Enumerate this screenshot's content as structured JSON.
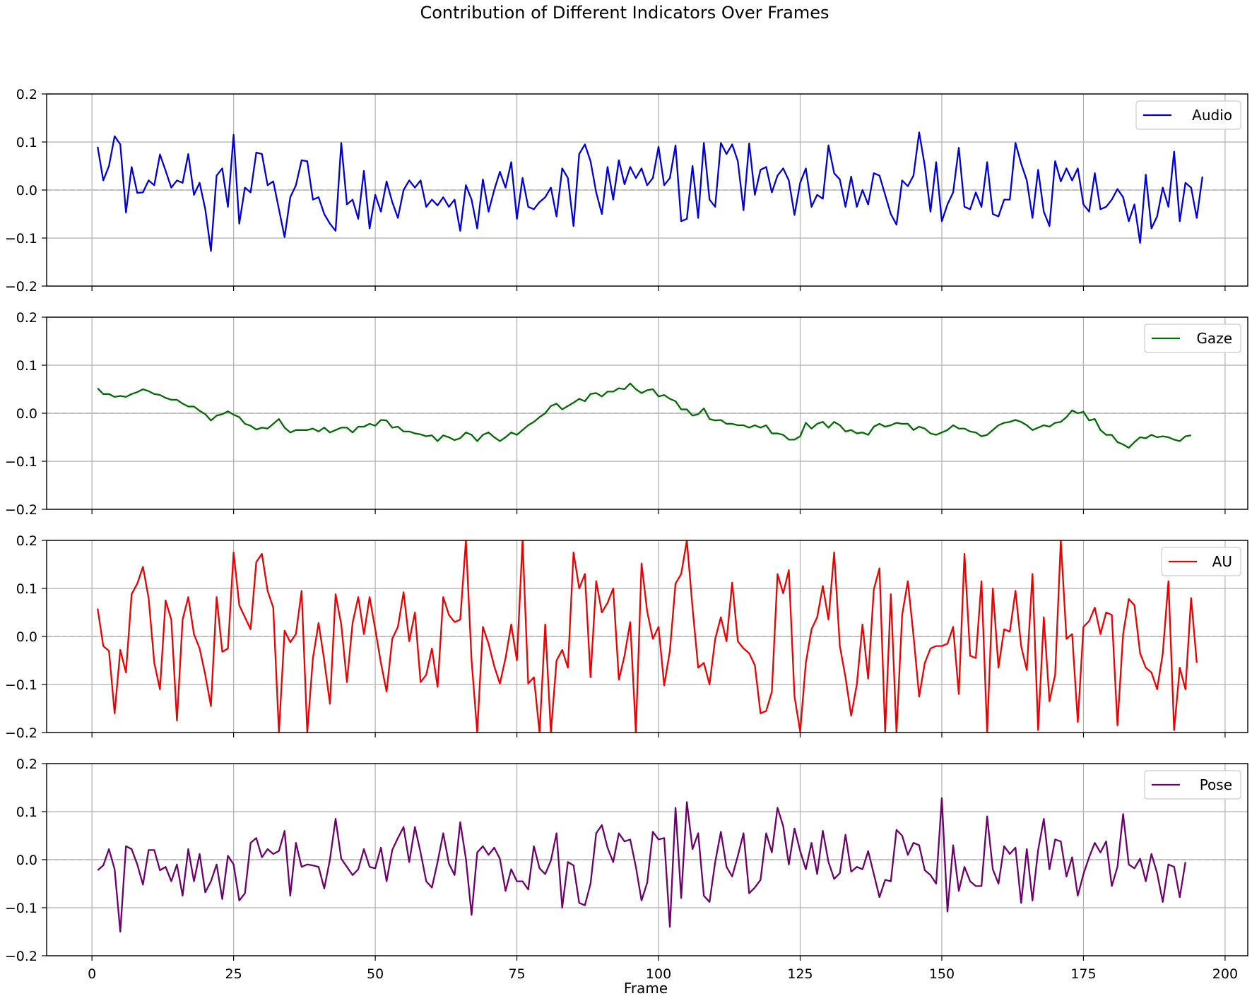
{
  "chart_data": {
    "type": "line",
    "title": "Contribution of Different Indicators Over Frames",
    "xlabel": "Frame",
    "xlim": [
      -8,
      204
    ],
    "ylim": [
      -0.2,
      0.2
    ],
    "x_ticks": [
      0,
      25,
      50,
      75,
      100,
      125,
      150,
      175,
      200
    ],
    "y_ticks": [
      -0.2,
      -0.1,
      0.0,
      0.1,
      0.2
    ],
    "y_tick_labels": [
      "−0.2",
      "−0.1",
      "0.0",
      "0.1",
      "0.2"
    ],
    "grid": true,
    "zero_line": {
      "color": "#b0b0b0",
      "style": "dashed"
    },
    "legend_position": "upper right",
    "x_start": 1,
    "x_end": 195,
    "panels": [
      {
        "name": "Audio",
        "color": "#0000dd",
        "x_axis_labels": false,
        "values": [
          0.09,
          0.02,
          0.05,
          0.112,
          0.095,
          -0.047,
          0.048,
          -0.006,
          -0.005,
          0.02,
          0.01,
          0.074,
          0.04,
          0.005,
          0.02,
          0.015,
          0.075,
          -0.01,
          0.015,
          -0.04,
          -0.127,
          0.03,
          0.045,
          -0.035,
          0.115,
          -0.07,
          0.005,
          -0.005,
          0.078,
          0.075,
          0.01,
          0.018,
          -0.04,
          -0.098,
          -0.015,
          0.01,
          0.062,
          0.06,
          -0.02,
          -0.015,
          -0.05,
          -0.07,
          -0.085,
          0.098,
          -0.03,
          -0.02,
          -0.06,
          0.04,
          -0.08,
          -0.01,
          -0.045,
          0.018,
          -0.025,
          -0.058,
          0.0,
          0.02,
          0.005,
          0.02,
          -0.035,
          -0.02,
          -0.032,
          -0.015,
          -0.035,
          -0.02,
          -0.085,
          0.01,
          -0.02,
          -0.08,
          0.022,
          -0.045,
          0.0,
          0.038,
          0.005,
          0.058,
          -0.06,
          0.025,
          -0.035,
          -0.04,
          -0.025,
          -0.015,
          0.005,
          -0.055,
          0.045,
          0.025,
          -0.075,
          0.075,
          0.095,
          0.06,
          -0.005,
          -0.05,
          0.048,
          -0.02,
          0.062,
          0.012,
          0.048,
          0.025,
          0.045,
          0.01,
          0.025,
          0.09,
          0.01,
          0.025,
          0.093,
          -0.065,
          -0.06,
          0.05,
          -0.058,
          0.098,
          -0.02,
          -0.035,
          0.098,
          0.075,
          0.095,
          0.06,
          -0.042,
          0.097,
          -0.01,
          0.042,
          0.048,
          -0.005,
          0.03,
          0.045,
          0.02,
          -0.052,
          0.015,
          0.045,
          -0.035,
          -0.01,
          -0.018,
          0.093,
          0.035,
          0.022,
          -0.035,
          0.028,
          -0.035,
          0.0,
          -0.03,
          0.035,
          0.03,
          -0.01,
          -0.05,
          -0.072,
          0.02,
          0.008,
          0.03,
          0.12,
          0.05,
          -0.045,
          0.058,
          -0.065,
          -0.03,
          -0.005,
          0.088,
          -0.035,
          -0.04,
          -0.005,
          -0.035,
          0.058,
          -0.05,
          -0.055,
          -0.02,
          -0.02,
          0.098,
          0.055,
          0.02,
          -0.058,
          0.042,
          -0.045,
          -0.075,
          0.06,
          0.018,
          0.045,
          0.02,
          0.045,
          -0.03,
          -0.045,
          0.035,
          -0.04,
          -0.035,
          -0.02,
          0.002,
          -0.015,
          -0.065,
          -0.03,
          -0.11,
          0.032,
          -0.08,
          -0.055,
          0.005,
          -0.035,
          0.08,
          -0.065,
          0.015,
          0.005,
          -0.058,
          0.028
        ]
      },
      {
        "name": "Gaze",
        "color": "#006b00",
        "x_axis_labels": false,
        "values": [
          0.052,
          0.04,
          0.04,
          0.034,
          0.036,
          0.034,
          0.04,
          0.044,
          0.05,
          0.046,
          0.04,
          0.038,
          0.032,
          0.028,
          0.028,
          0.02,
          0.014,
          0.014,
          0.005,
          -0.002,
          -0.015,
          -0.005,
          -0.002,
          0.004,
          -0.003,
          -0.008,
          -0.022,
          -0.026,
          -0.034,
          -0.03,
          -0.032,
          -0.022,
          -0.012,
          -0.03,
          -0.04,
          -0.035,
          -0.035,
          -0.035,
          -0.032,
          -0.038,
          -0.03,
          -0.04,
          -0.035,
          -0.03,
          -0.03,
          -0.04,
          -0.028,
          -0.028,
          -0.022,
          -0.026,
          -0.014,
          -0.015,
          -0.03,
          -0.028,
          -0.038,
          -0.038,
          -0.042,
          -0.044,
          -0.048,
          -0.046,
          -0.058,
          -0.046,
          -0.05,
          -0.056,
          -0.052,
          -0.04,
          -0.045,
          -0.058,
          -0.045,
          -0.04,
          -0.05,
          -0.058,
          -0.05,
          -0.04,
          -0.045,
          -0.035,
          -0.025,
          -0.018,
          -0.008,
          0.0,
          0.015,
          0.02,
          0.008,
          0.015,
          0.022,
          0.03,
          0.025,
          0.04,
          0.042,
          0.035,
          0.045,
          0.045,
          0.052,
          0.05,
          0.062,
          0.05,
          0.042,
          0.048,
          0.05,
          0.035,
          0.038,
          0.03,
          0.025,
          0.008,
          0.008,
          -0.005,
          -0.002,
          0.01,
          -0.012,
          -0.015,
          -0.014,
          -0.022,
          -0.022,
          -0.025,
          -0.025,
          -0.03,
          -0.025,
          -0.03,
          -0.025,
          -0.042,
          -0.042,
          -0.045,
          -0.055,
          -0.055,
          -0.048,
          -0.02,
          -0.032,
          -0.022,
          -0.018,
          -0.03,
          -0.018,
          -0.025,
          -0.038,
          -0.035,
          -0.042,
          -0.04,
          -0.045,
          -0.028,
          -0.022,
          -0.028,
          -0.025,
          -0.02,
          -0.022,
          -0.022,
          -0.035,
          -0.028,
          -0.032,
          -0.042,
          -0.045,
          -0.04,
          -0.035,
          -0.025,
          -0.032,
          -0.032,
          -0.038,
          -0.04,
          -0.048,
          -0.045,
          -0.035,
          -0.025,
          -0.02,
          -0.018,
          -0.014,
          -0.018,
          -0.025,
          -0.035,
          -0.03,
          -0.025,
          -0.028,
          -0.02,
          -0.018,
          -0.008,
          0.006,
          0.0,
          0.003,
          -0.015,
          -0.012,
          -0.035,
          -0.045,
          -0.045,
          -0.06,
          -0.065,
          -0.072,
          -0.06,
          -0.05,
          -0.052,
          -0.045,
          -0.05,
          -0.048,
          -0.05,
          -0.055,
          -0.058,
          -0.048,
          -0.046
        ]
      },
      {
        "name": "AU",
        "color": "#ee0000",
        "x_axis_labels": false,
        "values": [
          0.058,
          -0.02,
          -0.03,
          -0.16,
          -0.028,
          -0.075,
          0.088,
          0.11,
          0.145,
          0.08,
          -0.055,
          -0.11,
          0.075,
          0.035,
          -0.175,
          0.035,
          0.082,
          0.005,
          -0.025,
          -0.08,
          -0.145,
          0.082,
          -0.032,
          -0.025,
          0.175,
          0.065,
          0.04,
          0.015,
          0.155,
          0.172,
          0.095,
          0.06,
          -0.2,
          0.012,
          -0.012,
          0.005,
          0.095,
          -0.2,
          -0.045,
          0.028,
          -0.05,
          -0.14,
          0.088,
          0.025,
          -0.095,
          0.028,
          0.082,
          0.005,
          0.082,
          0.015,
          -0.055,
          -0.115,
          -0.005,
          0.02,
          0.092,
          -0.01,
          0.05,
          -0.095,
          -0.08,
          -0.025,
          -0.105,
          0.082,
          0.045,
          0.03,
          0.035,
          0.2,
          -0.05,
          -0.2,
          0.02,
          -0.015,
          -0.062,
          -0.098,
          -0.045,
          0.025,
          -0.05,
          0.2,
          -0.098,
          -0.085,
          -0.2,
          0.025,
          -0.2,
          -0.05,
          -0.028,
          -0.065,
          0.175,
          0.1,
          0.13,
          -0.085,
          0.115,
          0.05,
          0.07,
          0.1,
          -0.09,
          -0.04,
          0.03,
          -0.2,
          0.152,
          0.052,
          -0.005,
          0.02,
          -0.102,
          -0.03,
          0.11,
          0.13,
          0.2,
          0.06,
          -0.065,
          -0.055,
          -0.1,
          -0.005,
          0.04,
          -0.01,
          0.112,
          -0.01,
          -0.025,
          -0.035,
          -0.06,
          -0.16,
          -0.155,
          -0.115,
          0.13,
          0.09,
          0.138,
          -0.125,
          -0.198,
          -0.055,
          0.015,
          0.04,
          0.105,
          0.035,
          0.175,
          -0.02,
          -0.085,
          -0.165,
          -0.1,
          0.025,
          -0.088,
          0.098,
          0.142,
          -0.2,
          0.088,
          -0.2,
          0.045,
          0.115,
          0.002,
          -0.125,
          -0.055,
          -0.025,
          -0.02,
          -0.02,
          -0.015,
          0.02,
          -0.12,
          0.172,
          -0.04,
          -0.045,
          0.115,
          -0.2,
          0.1,
          -0.065,
          0.015,
          0.01,
          0.095,
          -0.02,
          -0.07,
          0.13,
          -0.195,
          0.04,
          -0.135,
          -0.08,
          0.2,
          -0.005,
          0.005,
          -0.178,
          0.02,
          0.032,
          0.06,
          0.005,
          0.05,
          0.045,
          -0.185,
          0.005,
          0.078,
          0.065,
          -0.035,
          -0.065,
          -0.075,
          -0.11,
          -0.035,
          0.115,
          -0.195,
          -0.065,
          -0.11,
          0.08,
          -0.055
        ]
      },
      {
        "name": "Pose",
        "color": "#6e006e",
        "x_axis_labels": true,
        "values": [
          -0.022,
          -0.012,
          0.022,
          -0.02,
          -0.15,
          0.028,
          0.022,
          -0.01,
          -0.052,
          0.02,
          0.02,
          -0.022,
          -0.015,
          -0.045,
          -0.01,
          -0.075,
          0.022,
          -0.045,
          0.012,
          -0.068,
          -0.045,
          -0.01,
          -0.082,
          0.008,
          -0.01,
          -0.085,
          -0.07,
          0.035,
          0.045,
          0.005,
          0.022,
          0.012,
          0.018,
          0.06,
          -0.075,
          0.035,
          -0.015,
          -0.01,
          -0.012,
          -0.015,
          -0.06,
          0.0,
          0.085,
          0.002,
          -0.015,
          -0.032,
          -0.02,
          0.022,
          -0.015,
          -0.018,
          0.025,
          -0.045,
          0.02,
          0.045,
          0.068,
          -0.005,
          0.068,
          0.015,
          -0.045,
          -0.058,
          -0.005,
          0.055,
          -0.008,
          -0.032,
          0.078,
          0.002,
          -0.115,
          0.015,
          0.028,
          0.01,
          0.025,
          0.002,
          -0.065,
          -0.02,
          -0.045,
          -0.045,
          -0.062,
          0.028,
          -0.018,
          -0.03,
          -0.002,
          0.055,
          -0.1,
          -0.005,
          -0.012,
          -0.09,
          -0.095,
          -0.05,
          0.055,
          0.072,
          0.025,
          -0.005,
          0.055,
          0.038,
          0.042,
          -0.015,
          -0.085,
          -0.048,
          0.058,
          0.042,
          0.045,
          -0.14,
          0.108,
          -0.08,
          0.12,
          0.022,
          0.055,
          -0.075,
          -0.088,
          -0.005,
          0.058,
          -0.015,
          -0.035,
          0.008,
          0.055,
          -0.07,
          -0.058,
          -0.042,
          0.055,
          0.015,
          0.108,
          0.07,
          -0.01,
          0.065,
          0.018,
          -0.02,
          0.035,
          -0.03,
          0.06,
          -0.005,
          -0.04,
          -0.028,
          0.052,
          -0.025,
          -0.015,
          -0.02,
          0.018,
          -0.03,
          -0.078,
          -0.042,
          -0.045,
          0.062,
          0.05,
          0.01,
          0.035,
          0.03,
          -0.022,
          -0.032,
          -0.05,
          0.128,
          -0.108,
          0.03,
          -0.065,
          -0.015,
          -0.045,
          -0.055,
          -0.055,
          0.09,
          -0.02,
          -0.05,
          0.028,
          0.012,
          0.025,
          -0.09,
          0.022,
          -0.085,
          0.02,
          0.085,
          -0.02,
          0.042,
          0.038,
          -0.035,
          0.005,
          -0.075,
          -0.03,
          0.005,
          0.035,
          0.015,
          0.038,
          -0.055,
          -0.015,
          0.095,
          -0.01,
          -0.018,
          0.002,
          -0.045,
          0.012,
          -0.028,
          -0.088,
          -0.01,
          -0.015,
          -0.078,
          -0.005
        ]
      }
    ]
  }
}
